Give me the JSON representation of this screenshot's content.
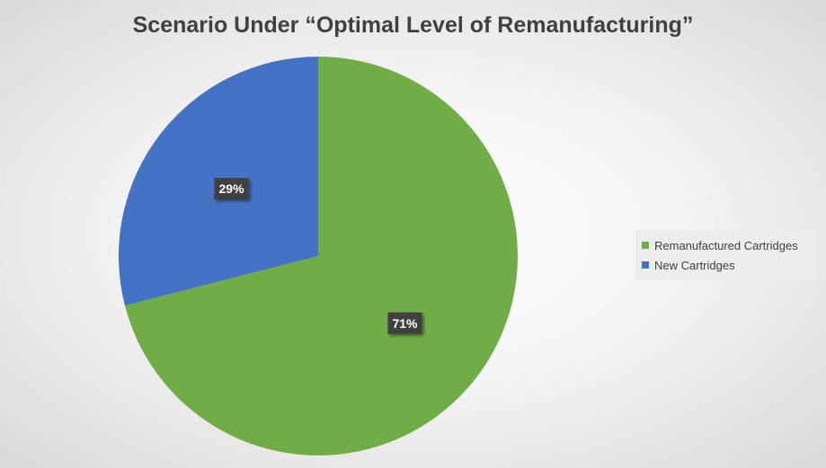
{
  "chart_data": {
    "type": "pie",
    "title": "Scenario Under “Optimal Level of Remanufacturing”",
    "slices": [
      {
        "name": "Remanufactured Cartridges",
        "value": 71,
        "label": "71%",
        "color": "#70ad47"
      },
      {
        "name": "New Cartridges",
        "value": 29,
        "label": "29%",
        "color": "#4472c4"
      }
    ],
    "legend_position": "right"
  }
}
